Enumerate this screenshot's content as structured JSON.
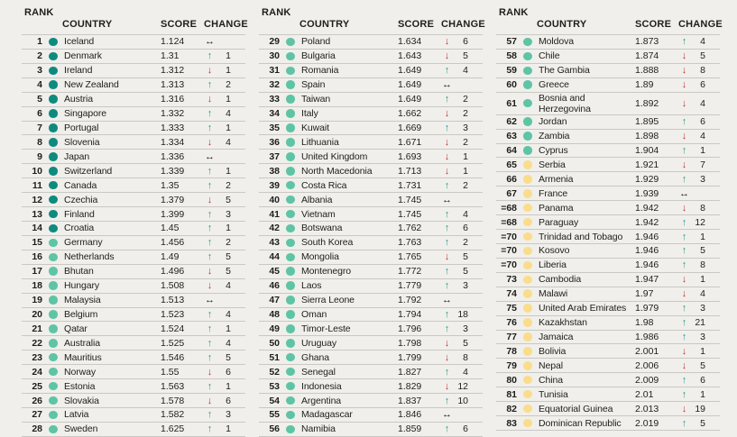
{
  "page": {
    "background_color": "#f0efeb"
  },
  "table": {
    "headers": {
      "rank": "RANK",
      "country": "COUNTRY",
      "score": "SCORE",
      "change": "CHANGE"
    },
    "tier_colors": {
      "very_high": "#0e8b7e",
      "high": "#5ec4a5",
      "medium": "#f9dd8d"
    },
    "change": {
      "glyphs": {
        "up": "↑",
        "down": "↓",
        "same": "↔"
      },
      "colors": {
        "up": "#2f9c8c",
        "down": "#c13237",
        "same": "#1e1e1c"
      }
    },
    "columns": [
      {
        "rows": [
          {
            "rank": "1",
            "country": "Iceland",
            "score": "1.124",
            "dir": "same",
            "val": "",
            "tier": "very_high"
          },
          {
            "rank": "2",
            "country": "Denmark",
            "score": "1.31",
            "dir": "up",
            "val": "1",
            "tier": "very_high"
          },
          {
            "rank": "3",
            "country": "Ireland",
            "score": "1.312",
            "dir": "down",
            "val": "1",
            "tier": "very_high"
          },
          {
            "rank": "4",
            "country": "New Zealand",
            "score": "1.313",
            "dir": "up",
            "val": "2",
            "tier": "very_high"
          },
          {
            "rank": "5",
            "country": "Austria",
            "score": "1.316",
            "dir": "down",
            "val": "1",
            "tier": "very_high"
          },
          {
            "rank": "6",
            "country": "Singapore",
            "score": "1.332",
            "dir": "up",
            "val": "4",
            "tier": "very_high"
          },
          {
            "rank": "7",
            "country": "Portugal",
            "score": "1.333",
            "dir": "up",
            "val": "1",
            "tier": "very_high"
          },
          {
            "rank": "8",
            "country": "Slovenia",
            "score": "1.334",
            "dir": "down",
            "val": "4",
            "tier": "very_high"
          },
          {
            "rank": "9",
            "country": "Japan",
            "score": "1.336",
            "dir": "same",
            "val": "",
            "tier": "very_high"
          },
          {
            "rank": "10",
            "country": "Switzerland",
            "score": "1.339",
            "dir": "up",
            "val": "1",
            "tier": "very_high"
          },
          {
            "rank": "11",
            "country": "Canada",
            "score": "1.35",
            "dir": "up",
            "val": "2",
            "tier": "very_high"
          },
          {
            "rank": "12",
            "country": "Czechia",
            "score": "1.379",
            "dir": "down",
            "val": "5",
            "tier": "very_high"
          },
          {
            "rank": "13",
            "country": "Finland",
            "score": "1.399",
            "dir": "up",
            "val": "3",
            "tier": "very_high"
          },
          {
            "rank": "14",
            "country": "Croatia",
            "score": "1.45",
            "dir": "up",
            "val": "1",
            "tier": "very_high"
          },
          {
            "rank": "15",
            "country": "Germany",
            "score": "1.456",
            "dir": "up",
            "val": "2",
            "tier": "high"
          },
          {
            "rank": "16",
            "country": "Netherlands",
            "score": "1.49",
            "dir": "up",
            "val": "5",
            "tier": "high"
          },
          {
            "rank": "17",
            "country": "Bhutan",
            "score": "1.496",
            "dir": "down",
            "val": "5",
            "tier": "high"
          },
          {
            "rank": "18",
            "country": "Hungary",
            "score": "1.508",
            "dir": "down",
            "val": "4",
            "tier": "high"
          },
          {
            "rank": "19",
            "country": "Malaysia",
            "score": "1.513",
            "dir": "same",
            "val": "",
            "tier": "high"
          },
          {
            "rank": "20",
            "country": "Belgium",
            "score": "1.523",
            "dir": "up",
            "val": "4",
            "tier": "high"
          },
          {
            "rank": "21",
            "country": "Qatar",
            "score": "1.524",
            "dir": "up",
            "val": "1",
            "tier": "high"
          },
          {
            "rank": "22",
            "country": "Australia",
            "score": "1.525",
            "dir": "up",
            "val": "4",
            "tier": "high"
          },
          {
            "rank": "23",
            "country": "Mauritius",
            "score": "1.546",
            "dir": "up",
            "val": "5",
            "tier": "high"
          },
          {
            "rank": "24",
            "country": "Norway",
            "score": "1.55",
            "dir": "down",
            "val": "6",
            "tier": "high"
          },
          {
            "rank": "25",
            "country": "Estonia",
            "score": "1.563",
            "dir": "up",
            "val": "1",
            "tier": "high"
          },
          {
            "rank": "26",
            "country": "Slovakia",
            "score": "1.578",
            "dir": "down",
            "val": "6",
            "tier": "high"
          },
          {
            "rank": "27",
            "country": "Latvia",
            "score": "1.582",
            "dir": "up",
            "val": "3",
            "tier": "high"
          },
          {
            "rank": "28",
            "country": "Sweden",
            "score": "1.625",
            "dir": "up",
            "val": "1",
            "tier": "high"
          }
        ]
      },
      {
        "rows": [
          {
            "rank": "29",
            "country": "Poland",
            "score": "1.634",
            "dir": "down",
            "val": "6",
            "tier": "high"
          },
          {
            "rank": "30",
            "country": "Bulgaria",
            "score": "1.643",
            "dir": "down",
            "val": "5",
            "tier": "high"
          },
          {
            "rank": "31",
            "country": "Romania",
            "score": "1.649",
            "dir": "up",
            "val": "4",
            "tier": "high"
          },
          {
            "rank": "32",
            "country": "Spain",
            "score": "1.649",
            "dir": "same",
            "val": "",
            "tier": "high"
          },
          {
            "rank": "33",
            "country": "Taiwan",
            "score": "1.649",
            "dir": "up",
            "val": "2",
            "tier": "high"
          },
          {
            "rank": "34",
            "country": "Italy",
            "score": "1.662",
            "dir": "down",
            "val": "2",
            "tier": "high"
          },
          {
            "rank": "35",
            "country": "Kuwait",
            "score": "1.669",
            "dir": "up",
            "val": "3",
            "tier": "high"
          },
          {
            "rank": "36",
            "country": "Lithuania",
            "score": "1.671",
            "dir": "down",
            "val": "2",
            "tier": "high"
          },
          {
            "rank": "37",
            "country": "United Kingdom",
            "score": "1.693",
            "dir": "down",
            "val": "1",
            "tier": "high"
          },
          {
            "rank": "38",
            "country": "North Macedonia",
            "score": "1.713",
            "dir": "down",
            "val": "1",
            "tier": "high"
          },
          {
            "rank": "39",
            "country": "Costa Rica",
            "score": "1.731",
            "dir": "up",
            "val": "2",
            "tier": "high"
          },
          {
            "rank": "40",
            "country": "Albania",
            "score": "1.745",
            "dir": "same",
            "val": "",
            "tier": "high"
          },
          {
            "rank": "41",
            "country": "Vietnam",
            "score": "1.745",
            "dir": "up",
            "val": "4",
            "tier": "high"
          },
          {
            "rank": "42",
            "country": "Botswana",
            "score": "1.762",
            "dir": "up",
            "val": "6",
            "tier": "high"
          },
          {
            "rank": "43",
            "country": "South Korea",
            "score": "1.763",
            "dir": "up",
            "val": "2",
            "tier": "high"
          },
          {
            "rank": "44",
            "country": "Mongolia",
            "score": "1.765",
            "dir": "down",
            "val": "5",
            "tier": "high"
          },
          {
            "rank": "45",
            "country": "Montenegro",
            "score": "1.772",
            "dir": "up",
            "val": "5",
            "tier": "high"
          },
          {
            "rank": "46",
            "country": "Laos",
            "score": "1.779",
            "dir": "up",
            "val": "3",
            "tier": "high"
          },
          {
            "rank": "47",
            "country": "Sierra Leone",
            "score": "1.792",
            "dir": "same",
            "val": "",
            "tier": "high"
          },
          {
            "rank": "48",
            "country": "Oman",
            "score": "1.794",
            "dir": "up",
            "val": "18",
            "tier": "high"
          },
          {
            "rank": "49",
            "country": "Timor-Leste",
            "score": "1.796",
            "dir": "up",
            "val": "3",
            "tier": "high"
          },
          {
            "rank": "50",
            "country": "Uruguay",
            "score": "1.798",
            "dir": "down",
            "val": "5",
            "tier": "high"
          },
          {
            "rank": "51",
            "country": "Ghana",
            "score": "1.799",
            "dir": "down",
            "val": "8",
            "tier": "high"
          },
          {
            "rank": "52",
            "country": "Senegal",
            "score": "1.827",
            "dir": "up",
            "val": "4",
            "tier": "high"
          },
          {
            "rank": "53",
            "country": "Indonesia",
            "score": "1.829",
            "dir": "down",
            "val": "12",
            "tier": "high"
          },
          {
            "rank": "54",
            "country": "Argentina",
            "score": "1.837",
            "dir": "up",
            "val": "10",
            "tier": "high"
          },
          {
            "rank": "55",
            "country": "Madagascar",
            "score": "1.846",
            "dir": "same",
            "val": "",
            "tier": "high"
          },
          {
            "rank": "56",
            "country": "Namibia",
            "score": "1.859",
            "dir": "up",
            "val": "6",
            "tier": "high"
          }
        ]
      },
      {
        "rows": [
          {
            "rank": "57",
            "country": "Moldova",
            "score": "1.873",
            "dir": "up",
            "val": "4",
            "tier": "high"
          },
          {
            "rank": "58",
            "country": "Chile",
            "score": "1.874",
            "dir": "down",
            "val": "5",
            "tier": "high"
          },
          {
            "rank": "59",
            "country": "The Gambia",
            "score": "1.888",
            "dir": "down",
            "val": "8",
            "tier": "high"
          },
          {
            "rank": "60",
            "country": "Greece",
            "score": "1.89",
            "dir": "down",
            "val": "6",
            "tier": "high"
          },
          {
            "rank": "61",
            "country": "Bosnia and\nHerzegovina",
            "score": "1.892",
            "dir": "down",
            "val": "4",
            "tier": "high"
          },
          {
            "rank": "62",
            "country": "Jordan",
            "score": "1.895",
            "dir": "up",
            "val": "6",
            "tier": "high"
          },
          {
            "rank": "63",
            "country": "Zambia",
            "score": "1.898",
            "dir": "down",
            "val": "4",
            "tier": "high"
          },
          {
            "rank": "64",
            "country": "Cyprus",
            "score": "1.904",
            "dir": "up",
            "val": "1",
            "tier": "high"
          },
          {
            "rank": "65",
            "country": "Serbia",
            "score": "1.921",
            "dir": "down",
            "val": "7",
            "tier": "medium"
          },
          {
            "rank": "66",
            "country": "Armenia",
            "score": "1.929",
            "dir": "up",
            "val": "3",
            "tier": "medium"
          },
          {
            "rank": "67",
            "country": "France",
            "score": "1.939",
            "dir": "same",
            "val": "",
            "tier": "medium"
          },
          {
            "rank": "=68",
            "country": "Panama",
            "score": "1.942",
            "dir": "down",
            "val": "8",
            "tier": "medium"
          },
          {
            "rank": "=68",
            "country": "Paraguay",
            "score": "1.942",
            "dir": "up",
            "val": "12",
            "tier": "medium"
          },
          {
            "rank": "=70",
            "country": "Trinidad and Tobago",
            "score": "1.946",
            "dir": "up",
            "val": "1",
            "tier": "medium"
          },
          {
            "rank": "=70",
            "country": "Kosovo",
            "score": "1.946",
            "dir": "up",
            "val": "5",
            "tier": "medium"
          },
          {
            "rank": "=70",
            "country": "Liberia",
            "score": "1.946",
            "dir": "up",
            "val": "8",
            "tier": "medium"
          },
          {
            "rank": "73",
            "country": "Cambodia",
            "score": "1.947",
            "dir": "down",
            "val": "1",
            "tier": "medium"
          },
          {
            "rank": "74",
            "country": "Malawi",
            "score": "1.97",
            "dir": "down",
            "val": "4",
            "tier": "medium"
          },
          {
            "rank": "75",
            "country": "United Arab Emirates",
            "score": "1.979",
            "dir": "up",
            "val": "3",
            "tier": "medium"
          },
          {
            "rank": "76",
            "country": "Kazakhstan",
            "score": "1.98",
            "dir": "up",
            "val": "21",
            "tier": "medium"
          },
          {
            "rank": "77",
            "country": "Jamaica",
            "score": "1.986",
            "dir": "up",
            "val": "3",
            "tier": "medium"
          },
          {
            "rank": "78",
            "country": "Bolivia",
            "score": "2.001",
            "dir": "down",
            "val": "1",
            "tier": "medium"
          },
          {
            "rank": "79",
            "country": "Nepal",
            "score": "2.006",
            "dir": "down",
            "val": "5",
            "tier": "medium"
          },
          {
            "rank": "80",
            "country": "China",
            "score": "2.009",
            "dir": "up",
            "val": "6",
            "tier": "medium"
          },
          {
            "rank": "81",
            "country": "Tunisia",
            "score": "2.01",
            "dir": "up",
            "val": "1",
            "tier": "medium"
          },
          {
            "rank": "82",
            "country": "Equatorial Guinea",
            "score": "2.013",
            "dir": "down",
            "val": "19",
            "tier": "medium"
          },
          {
            "rank": "83",
            "country": "Dominican Republic",
            "score": "2.019",
            "dir": "up",
            "val": "5",
            "tier": "medium"
          }
        ]
      }
    ]
  }
}
